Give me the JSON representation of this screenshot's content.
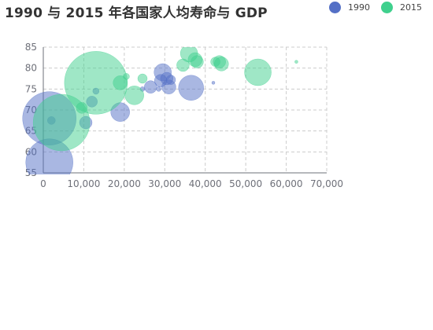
{
  "title": "1990 与 2015 年各国家人均寿命与 GDP",
  "chart_data": {
    "type": "scatter",
    "title": "1990 与 2015 年各国家人均寿命与 GDP",
    "xlabel": "",
    "ylabel": "",
    "xlim": [
      0,
      70000
    ],
    "ylim": [
      55,
      85
    ],
    "x_ticks": [
      0,
      10000,
      20000,
      30000,
      40000,
      50000,
      60000,
      70000
    ],
    "x_tick_labels": [
      "0",
      "10,000",
      "20,000",
      "30,000",
      "40,000",
      "50,000",
      "60,000",
      "70,000"
    ],
    "y_ticks": [
      55,
      60,
      65,
      70,
      75,
      80,
      85
    ],
    "y_tick_labels": [
      "55",
      "60",
      "65",
      "70",
      "75",
      "80",
      "85"
    ],
    "grid": true,
    "legend": "top-right",
    "bubble_size_note": "bubble area encodes population",
    "series": [
      {
        "name": "1990",
        "color": "#5470c6",
        "points": [
          {
            "x": 1500,
            "y": 68,
            "r": 34
          },
          {
            "x": 1500,
            "y": 57.5,
            "r": 30
          },
          {
            "x": 2000,
            "y": 67.5,
            "r": 5
          },
          {
            "x": 10500,
            "y": 67,
            "r": 8
          },
          {
            "x": 12000,
            "y": 72,
            "r": 7
          },
          {
            "x": 13000,
            "y": 74.5,
            "r": 4
          },
          {
            "x": 19000,
            "y": 69.5,
            "r": 12
          },
          {
            "x": 24500,
            "y": 75,
            "r": 3
          },
          {
            "x": 26500,
            "y": 75.5,
            "r": 8
          },
          {
            "x": 28500,
            "y": 75,
            "r": 3
          },
          {
            "x": 29000,
            "y": 77,
            "r": 8
          },
          {
            "x": 29500,
            "y": 79,
            "r": 11
          },
          {
            "x": 30500,
            "y": 77.5,
            "r": 8
          },
          {
            "x": 31000,
            "y": 75.5,
            "r": 9
          },
          {
            "x": 31500,
            "y": 77.2,
            "r": 6
          },
          {
            "x": 36500,
            "y": 75.3,
            "r": 16
          },
          {
            "x": 42000,
            "y": 76.5,
            "r": 2
          }
        ]
      },
      {
        "name": "2015",
        "color": "#3fd08d",
        "points": [
          {
            "x": 4500,
            "y": 67,
            "r": 36
          },
          {
            "x": 13000,
            "y": 76.5,
            "r": 40
          },
          {
            "x": 9500,
            "y": 70.5,
            "r": 7
          },
          {
            "x": 19000,
            "y": 76.5,
            "r": 9
          },
          {
            "x": 20500,
            "y": 78,
            "r": 4
          },
          {
            "x": 22500,
            "y": 73.5,
            "r": 12
          },
          {
            "x": 24500,
            "y": 77.5,
            "r": 6
          },
          {
            "x": 34500,
            "y": 80.7,
            "r": 8
          },
          {
            "x": 36000,
            "y": 83.5,
            "r": 11
          },
          {
            "x": 37500,
            "y": 82,
            "r": 9
          },
          {
            "x": 38000,
            "y": 81.5,
            "r": 8
          },
          {
            "x": 42500,
            "y": 81.5,
            "r": 6
          },
          {
            "x": 43500,
            "y": 81.5,
            "r": 8
          },
          {
            "x": 44000,
            "y": 81,
            "r": 9
          },
          {
            "x": 53000,
            "y": 79,
            "r": 17
          },
          {
            "x": 62500,
            "y": 81.5,
            "r": 2
          }
        ]
      }
    ]
  }
}
